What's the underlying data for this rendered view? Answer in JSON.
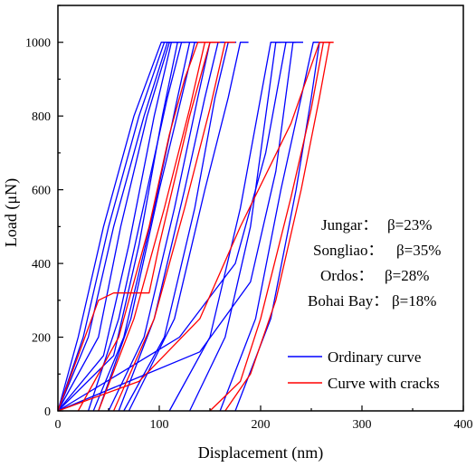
{
  "chart_data": {
    "type": "line",
    "xlabel": "Displacement (nm)",
    "ylabel": "Load (μN)",
    "xlim": [
      0,
      400
    ],
    "ylim": [
      0,
      1100
    ],
    "x_ticks": [
      "0",
      "100",
      "200",
      "300",
      "400"
    ],
    "y_ticks": [
      "0",
      "200",
      "400",
      "600",
      "800",
      "1000"
    ],
    "grid": false,
    "legend_position": "bottom-right",
    "legend": [
      {
        "label": "Ordinary curve",
        "color": "#0000ff"
      },
      {
        "label": "Curve with cracks",
        "color": "#ff0000"
      }
    ],
    "annotations": [
      {
        "label": "Jungar：",
        "value": "β=23%"
      },
      {
        "label": "Songliao：",
        "value": "β=35%"
      },
      {
        "label": "Ordos：",
        "value": "β=28%"
      },
      {
        "label": "Bohai Bay：",
        "value": "β=18%"
      }
    ],
    "series": [
      {
        "color": "#0000ff",
        "points": [
          [
            0,
            0
          ],
          [
            20,
            200
          ],
          [
            45,
            500
          ],
          [
            75,
            800
          ],
          [
            102,
            1000
          ],
          [
            110,
            1000
          ]
        ]
      },
      {
        "color": "#0000ff",
        "points": [
          [
            0,
            0
          ],
          [
            25,
            200
          ],
          [
            50,
            500
          ],
          [
            80,
            800
          ],
          [
            105,
            1000
          ],
          [
            112,
            1000
          ]
        ]
      },
      {
        "color": "#0000ff",
        "points": [
          [
            0,
            0
          ],
          [
            30,
            200
          ],
          [
            55,
            500
          ],
          [
            85,
            800
          ],
          [
            108,
            1000
          ],
          [
            116,
            1000
          ]
        ]
      },
      {
        "color": "#0000ff",
        "points": [
          [
            0,
            0
          ],
          [
            40,
            200
          ],
          [
            62,
            500
          ],
          [
            88,
            800
          ],
          [
            110,
            1000
          ],
          [
            118,
            1000
          ]
        ]
      },
      {
        "color": "#0000ff",
        "points": [
          [
            0,
            0
          ],
          [
            45,
            150
          ],
          [
            70,
            450
          ],
          [
            95,
            800
          ],
          [
            112,
            1000
          ],
          [
            120,
            1000
          ]
        ]
      },
      {
        "color": "#0000ff",
        "points": [
          [
            0,
            0
          ],
          [
            55,
            150
          ],
          [
            80,
            450
          ],
          [
            103,
            800
          ],
          [
            118,
            1000
          ],
          [
            126,
            1000
          ]
        ]
      },
      {
        "color": "#0000ff",
        "points": [
          [
            30,
            0
          ],
          [
            60,
            250
          ],
          [
            88,
            600
          ],
          [
            108,
            850
          ],
          [
            122,
            1000
          ],
          [
            130,
            1000
          ]
        ]
      },
      {
        "color": "#0000ff",
        "points": [
          [
            35,
            0
          ],
          [
            65,
            200
          ],
          [
            95,
            550
          ],
          [
            118,
            850
          ],
          [
            130,
            1000
          ],
          [
            138,
            1000
          ]
        ]
      },
      {
        "color": "#0000ff",
        "points": [
          [
            40,
            0
          ],
          [
            72,
            250
          ],
          [
            100,
            600
          ],
          [
            122,
            850
          ],
          [
            135,
            1000
          ],
          [
            143,
            1000
          ]
        ]
      },
      {
        "color": "#0000ff",
        "points": [
          [
            50,
            0
          ],
          [
            85,
            200
          ],
          [
            115,
            550
          ],
          [
            138,
            850
          ],
          [
            150,
            1000
          ],
          [
            158,
            1000
          ]
        ]
      },
      {
        "color": "#0000ff",
        "points": [
          [
            60,
            0
          ],
          [
            95,
            250
          ],
          [
            125,
            600
          ],
          [
            145,
            850
          ],
          [
            158,
            1000
          ],
          [
            166,
            1000
          ]
        ]
      },
      {
        "color": "#0000ff",
        "points": [
          [
            65,
            0
          ],
          [
            105,
            200
          ],
          [
            135,
            550
          ],
          [
            155,
            850
          ],
          [
            168,
            1000
          ],
          [
            176,
            1000
          ]
        ]
      },
      {
        "color": "#0000ff",
        "points": [
          [
            70,
            0
          ],
          [
            115,
            250
          ],
          [
            145,
            600
          ],
          [
            168,
            850
          ],
          [
            180,
            1000
          ],
          [
            188,
            1000
          ]
        ]
      },
      {
        "color": "#0000ff",
        "points": [
          [
            110,
            0
          ],
          [
            150,
            200
          ],
          [
            180,
            550
          ],
          [
            200,
            850
          ],
          [
            210,
            1000
          ],
          [
            220,
            1000
          ]
        ]
      },
      {
        "color": "#0000ff",
        "points": [
          [
            130,
            0
          ],
          [
            165,
            200
          ],
          [
            190,
            500
          ],
          [
            205,
            800
          ],
          [
            215,
            1000
          ],
          [
            225,
            1000
          ]
        ]
      },
      {
        "color": "#0000ff",
        "points": [
          [
            160,
            0
          ],
          [
            195,
            250
          ],
          [
            220,
            600
          ],
          [
            240,
            850
          ],
          [
            252,
            1000
          ],
          [
            262,
            1000
          ]
        ]
      },
      {
        "color": "#0000ff",
        "points": [
          [
            175,
            0
          ],
          [
            210,
            250
          ],
          [
            235,
            600
          ],
          [
            250,
            850
          ],
          [
            258,
            1000
          ],
          [
            268,
            1000
          ]
        ]
      },
      {
        "color": "#0000ff",
        "points": [
          [
            0,
            0
          ],
          [
            60,
            100
          ],
          [
            120,
            200
          ],
          [
            175,
            400
          ],
          [
            205,
            700
          ],
          [
            225,
            1000
          ],
          [
            235,
            1000
          ]
        ]
      },
      {
        "color": "#0000ff",
        "points": [
          [
            0,
            0
          ],
          [
            70,
            80
          ],
          [
            140,
            160
          ],
          [
            190,
            350
          ],
          [
            215,
            650
          ],
          [
            232,
            1000
          ],
          [
            242,
            1000
          ]
        ]
      },
      {
        "color": "#ff0000",
        "points": [
          [
            0,
            0
          ],
          [
            40,
            300
          ],
          [
            55,
            320
          ],
          [
            90,
            320
          ],
          [
            100,
            450
          ],
          [
            130,
            800
          ],
          [
            150,
            1000
          ],
          [
            160,
            1000
          ]
        ]
      },
      {
        "color": "#ff0000",
        "points": [
          [
            20,
            0
          ],
          [
            60,
            200
          ],
          [
            90,
            500
          ],
          [
            110,
            750
          ],
          [
            125,
            900
          ],
          [
            138,
            1000
          ],
          [
            148,
            1000
          ]
        ]
      },
      {
        "color": "#ff0000",
        "points": [
          [
            40,
            0
          ],
          [
            75,
            250
          ],
          [
            105,
            550
          ],
          [
            130,
            820
          ],
          [
            145,
            1000
          ],
          [
            155,
            1000
          ]
        ]
      },
      {
        "color": "#ff0000",
        "points": [
          [
            55,
            0
          ],
          [
            95,
            250
          ],
          [
            125,
            550
          ],
          [
            150,
            820
          ],
          [
            165,
            1000
          ],
          [
            175,
            1000
          ]
        ]
      },
      {
        "color": "#ff0000",
        "points": [
          [
            0,
            0
          ],
          [
            80,
            80
          ],
          [
            140,
            250
          ],
          [
            180,
            500
          ],
          [
            230,
            780
          ],
          [
            258,
            1000
          ],
          [
            268,
            1000
          ]
        ]
      },
      {
        "color": "#ff0000",
        "points": [
          [
            150,
            0
          ],
          [
            180,
            80
          ],
          [
            200,
            250
          ],
          [
            230,
            580
          ],
          [
            250,
            820
          ],
          [
            262,
            1000
          ],
          [
            272,
            1000
          ]
        ]
      },
      {
        "color": "#ff0000",
        "points": [
          [
            165,
            0
          ],
          [
            190,
            100
          ],
          [
            215,
            300
          ],
          [
            240,
            600
          ],
          [
            258,
            850
          ],
          [
            268,
            1000
          ],
          [
            272,
            1000
          ]
        ]
      }
    ]
  }
}
